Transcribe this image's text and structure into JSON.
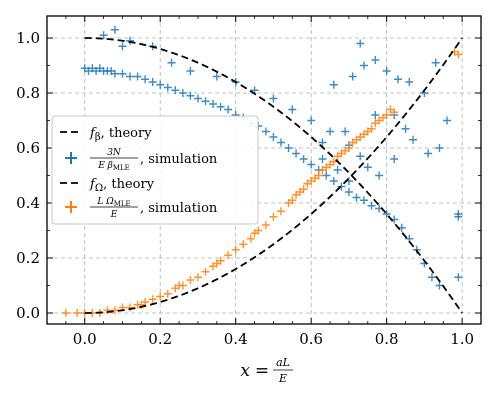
{
  "chart_data": {
    "type": "scatter",
    "xlabel": {
      "lhs": "x",
      "eq": "=",
      "num": "aL",
      "den": "E"
    },
    "xlim": [
      -0.1,
      1.05
    ],
    "ylim": [
      -0.04,
      1.08
    ],
    "xticks": [
      "0.0",
      "0.2",
      "0.4",
      "0.6",
      "0.8",
      "1.0"
    ],
    "yticks": [
      "0.0",
      "0.2",
      "0.4",
      "0.6",
      "0.8",
      "1.0"
    ],
    "grid": true,
    "legend_placement": "center-left",
    "colors": {
      "blue": "#1f77b4",
      "orange": "#ff7f0e",
      "theory": "#000000"
    },
    "legend": [
      {
        "id": "fbeta-theory",
        "symbol": "f",
        "subscript": "β",
        "suffix": ", theory",
        "style": "dashed"
      },
      {
        "id": "beta-sim",
        "num": "3N",
        "den": "E β",
        "den_sub": "MLE",
        "suffix": ", simulation",
        "style": "plus",
        "color": "blue"
      },
      {
        "id": "fomega-theory",
        "symbol": "f",
        "subscript": "Ω",
        "suffix": ", theory",
        "style": "dashed"
      },
      {
        "id": "omega-sim",
        "num": "L Ω",
        "num_sub": "MLE",
        "den": "E",
        "suffix": ", simulation",
        "style": "plus",
        "color": "orange"
      }
    ],
    "series": [
      {
        "id": "beta-simulation",
        "color": "blue",
        "points": [
          [
            0.0,
            0.89
          ],
          [
            0.01,
            0.88
          ],
          [
            0.02,
            0.89
          ],
          [
            0.03,
            0.88
          ],
          [
            0.04,
            0.89
          ],
          [
            0.05,
            0.88
          ],
          [
            0.06,
            0.88
          ],
          [
            0.07,
            0.88
          ],
          [
            0.08,
            0.87
          ],
          [
            0.1,
            0.87
          ],
          [
            0.12,
            0.86
          ],
          [
            0.14,
            0.86
          ],
          [
            0.16,
            0.85
          ],
          [
            0.18,
            0.84
          ],
          [
            0.2,
            0.83
          ],
          [
            0.22,
            0.82
          ],
          [
            0.24,
            0.81
          ],
          [
            0.26,
            0.8
          ],
          [
            0.28,
            0.79
          ],
          [
            0.3,
            0.78
          ],
          [
            0.32,
            0.77
          ],
          [
            0.34,
            0.76
          ],
          [
            0.36,
            0.75
          ],
          [
            0.38,
            0.74
          ],
          [
            0.4,
            0.72
          ],
          [
            0.42,
            0.71
          ],
          [
            0.44,
            0.69
          ],
          [
            0.46,
            0.68
          ],
          [
            0.48,
            0.66
          ],
          [
            0.5,
            0.64
          ],
          [
            0.52,
            0.62
          ],
          [
            0.54,
            0.6
          ],
          [
            0.56,
            0.58
          ],
          [
            0.58,
            0.56
          ],
          [
            0.6,
            0.54
          ],
          [
            0.62,
            0.52
          ],
          [
            0.64,
            0.5
          ],
          [
            0.66,
            0.48
          ],
          [
            0.68,
            0.46
          ],
          [
            0.7,
            0.44
          ],
          [
            0.72,
            0.42
          ],
          [
            0.74,
            0.41
          ],
          [
            0.76,
            0.39
          ],
          [
            0.78,
            0.38
          ],
          [
            0.8,
            0.36
          ],
          [
            0.82,
            0.34
          ],
          [
            0.84,
            0.31
          ],
          [
            0.86,
            0.27
          ],
          [
            0.88,
            0.23
          ],
          [
            0.9,
            0.18
          ],
          [
            0.92,
            0.13
          ],
          [
            0.94,
            0.1
          ],
          [
            0.05,
            1.01
          ],
          [
            0.1,
            0.97
          ],
          [
            0.08,
            1.03
          ],
          [
            0.12,
            0.99
          ],
          [
            0.18,
            0.97
          ],
          [
            0.23,
            0.91
          ],
          [
            0.28,
            0.88
          ],
          [
            0.35,
            0.86
          ],
          [
            0.4,
            0.84
          ],
          [
            0.45,
            0.81
          ],
          [
            0.5,
            0.78
          ],
          [
            0.55,
            0.74
          ],
          [
            0.6,
            0.7
          ],
          [
            0.65,
            0.66
          ],
          [
            0.7,
            0.61
          ],
          [
            0.73,
            0.57
          ],
          [
            0.75,
            0.53
          ],
          [
            0.78,
            0.5
          ],
          [
            0.63,
            0.56
          ],
          [
            0.67,
            0.52
          ],
          [
            0.7,
            0.48
          ],
          [
            0.66,
            0.83
          ],
          [
            0.71,
            0.86
          ],
          [
            0.74,
            0.9
          ],
          [
            0.77,
            0.92
          ],
          [
            0.8,
            0.88
          ],
          [
            0.83,
            0.85
          ],
          [
            0.86,
            0.84
          ],
          [
            0.9,
            0.8
          ],
          [
            0.93,
            0.91
          ],
          [
            0.96,
            0.7
          ],
          [
            0.73,
            0.98
          ],
          [
            0.77,
            0.72
          ],
          [
            0.82,
            0.56
          ],
          [
            0.87,
            0.63
          ],
          [
            0.91,
            0.58
          ],
          [
            0.94,
            0.6
          ],
          [
            0.99,
            0.36
          ],
          [
            0.99,
            0.35
          ],
          [
            0.99,
            0.13
          ],
          [
            0.63,
            0.62
          ],
          [
            0.69,
            0.66
          ],
          [
            0.82,
            0.72
          ],
          [
            0.85,
            0.67
          ]
        ]
      },
      {
        "id": "omega-simulation",
        "color": "orange",
        "points": [
          [
            -0.05,
            0.0
          ],
          [
            -0.02,
            0.0
          ],
          [
            0.0,
            0.0
          ],
          [
            0.02,
            0.0
          ],
          [
            0.04,
            0.0
          ],
          [
            0.06,
            0.01
          ],
          [
            0.08,
            0.01
          ],
          [
            0.1,
            0.02
          ],
          [
            0.12,
            0.02
          ],
          [
            0.14,
            0.03
          ],
          [
            0.16,
            0.04
          ],
          [
            0.18,
            0.05
          ],
          [
            0.2,
            0.06
          ],
          [
            0.22,
            0.07
          ],
          [
            0.24,
            0.09
          ],
          [
            0.26,
            0.1
          ],
          [
            0.28,
            0.12
          ],
          [
            0.3,
            0.13
          ],
          [
            0.32,
            0.15
          ],
          [
            0.34,
            0.17
          ],
          [
            0.36,
            0.19
          ],
          [
            0.38,
            0.21
          ],
          [
            0.4,
            0.23
          ],
          [
            0.42,
            0.25
          ],
          [
            0.44,
            0.27
          ],
          [
            0.46,
            0.3
          ],
          [
            0.48,
            0.32
          ],
          [
            0.5,
            0.35
          ],
          [
            0.52,
            0.37
          ],
          [
            0.54,
            0.4
          ],
          [
            0.56,
            0.43
          ],
          [
            0.58,
            0.45
          ],
          [
            0.6,
            0.48
          ],
          [
            0.62,
            0.5
          ],
          [
            0.64,
            0.53
          ],
          [
            0.66,
            0.55
          ],
          [
            0.68,
            0.58
          ],
          [
            0.7,
            0.6
          ],
          [
            0.72,
            0.63
          ],
          [
            0.74,
            0.65
          ],
          [
            0.76,
            0.67
          ],
          [
            0.78,
            0.7
          ],
          [
            0.8,
            0.72
          ],
          [
            0.82,
            0.73
          ],
          [
            0.98,
            0.95
          ],
          [
            0.99,
            0.94
          ],
          [
            0.59,
            0.47
          ],
          [
            0.61,
            0.49
          ],
          [
            0.63,
            0.52
          ],
          [
            0.65,
            0.54
          ],
          [
            0.67,
            0.57
          ],
          [
            0.69,
            0.59
          ],
          [
            0.71,
            0.62
          ],
          [
            0.73,
            0.64
          ],
          [
            0.75,
            0.66
          ],
          [
            0.77,
            0.69
          ],
          [
            0.79,
            0.71
          ],
          [
            0.81,
            0.74
          ],
          [
            0.55,
            0.41
          ],
          [
            0.57,
            0.44
          ],
          [
            0.45,
            0.29
          ],
          [
            0.35,
            0.18
          ],
          [
            0.25,
            0.1
          ],
          [
            0.15,
            0.03
          ]
        ]
      }
    ]
  }
}
